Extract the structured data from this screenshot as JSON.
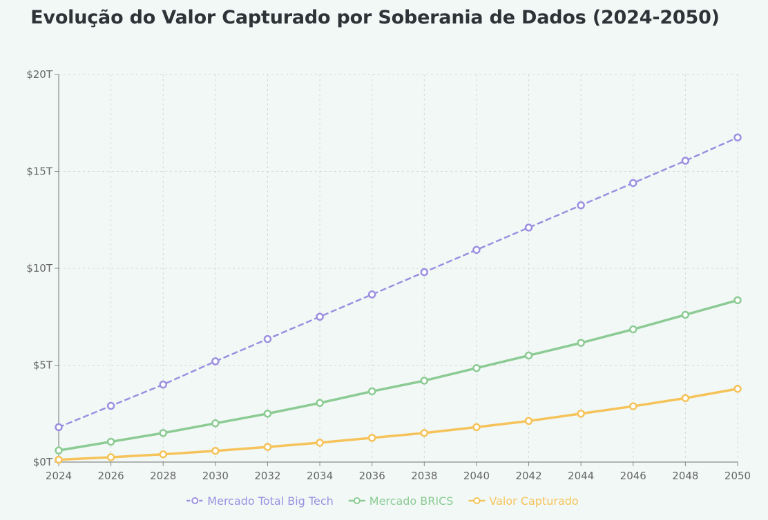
{
  "chart_data": {
    "type": "line",
    "title": "Evolução do Valor Capturado por Soberania de Dados (2024-2050)",
    "xlabel": "",
    "ylabel": "",
    "x": [
      "2024",
      "2026",
      "2028",
      "2030",
      "2032",
      "2034",
      "2036",
      "2038",
      "2040",
      "2042",
      "2044",
      "2046",
      "2048",
      "2050"
    ],
    "ylim": [
      0,
      20
    ],
    "yticks": [
      0,
      5,
      10,
      15,
      20
    ],
    "ytick_labels": [
      "$0T",
      "$5T",
      "$10T",
      "$15T",
      "$20T"
    ],
    "grid": true,
    "legend_position": "bottom",
    "series": [
      {
        "name": "Mercado Total Big Tech",
        "color": "#9b90e0",
        "style": "dashed",
        "values": [
          1.8,
          2.9,
          4.0,
          5.2,
          6.35,
          7.5,
          8.65,
          9.8,
          10.95,
          12.1,
          13.25,
          14.4,
          15.55,
          16.75
        ]
      },
      {
        "name": "Mercado BRICS",
        "color": "#8ccb94",
        "style": "solid",
        "values": [
          0.6,
          1.05,
          1.5,
          2.0,
          2.5,
          3.05,
          3.65,
          4.2,
          4.85,
          5.5,
          6.15,
          6.85,
          7.6,
          8.35
        ]
      },
      {
        "name": "Valor Capturado",
        "color": "#f6c35a",
        "style": "solid",
        "values": [
          0.12,
          0.25,
          0.4,
          0.58,
          0.78,
          1.0,
          1.25,
          1.5,
          1.8,
          2.12,
          2.5,
          2.88,
          3.3,
          3.78
        ]
      }
    ]
  }
}
